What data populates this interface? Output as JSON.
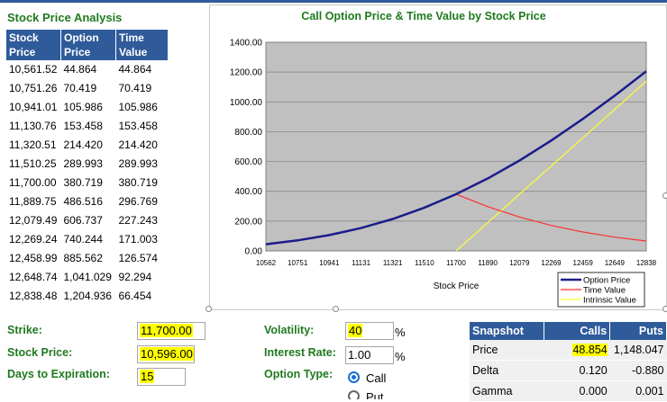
{
  "analysis": {
    "title": "Stock Price Analysis",
    "headers": [
      [
        "Stock",
        "Price"
      ],
      [
        "Option",
        "Price"
      ],
      [
        "Time",
        "Value"
      ]
    ],
    "rows": [
      [
        "10,561.52",
        "44.864",
        "44.864"
      ],
      [
        "10,751.26",
        "70.419",
        "70.419"
      ],
      [
        "10,941.01",
        "105.986",
        "105.986"
      ],
      [
        "11,130.76",
        "153.458",
        "153.458"
      ],
      [
        "11,320.51",
        "214.420",
        "214.420"
      ],
      [
        "11,510.25",
        "289.993",
        "289.993"
      ],
      [
        "11,700.00",
        "380.719",
        "380.719"
      ],
      [
        "11,889.75",
        "486.516",
        "296.769"
      ],
      [
        "12,079.49",
        "606.737",
        "227.243"
      ],
      [
        "12,269.24",
        "740.244",
        "171.003"
      ],
      [
        "12,458.99",
        "885.562",
        "126.574"
      ],
      [
        "12,648.74",
        "1,041.029",
        "92.294"
      ],
      [
        "12,838.48",
        "1,204.936",
        "66.454"
      ]
    ]
  },
  "chart_data": {
    "type": "line",
    "title": "Call Option Price & Time Value by Stock Price",
    "xlabel": "Stock Price",
    "ylabel": "",
    "x": [
      10561.52,
      10751.26,
      10941.01,
      11130.76,
      11320.51,
      11510.25,
      11700.0,
      11889.75,
      12079.49,
      12269.24,
      12458.99,
      12648.74,
      12838.48
    ],
    "categories": [
      "10562",
      "10751",
      "10941",
      "11131",
      "11321",
      "11510",
      "11700",
      "11890",
      "12079",
      "12269",
      "12459",
      "12649",
      "12838"
    ],
    "ylim": [
      0,
      1400
    ],
    "yticks": [
      "0.00",
      "200.00",
      "400.00",
      "600.00",
      "800.00",
      "1000.00",
      "1200.00",
      "1400.00"
    ],
    "ytick_values": [
      0,
      200,
      400,
      600,
      800,
      1000,
      1200,
      1400
    ],
    "grid": true,
    "legend_position": "bottom-right",
    "series": [
      {
        "name": "Option Price",
        "color": "#1c1c8c",
        "values": [
          44.864,
          70.419,
          105.986,
          153.458,
          214.42,
          289.993,
          380.719,
          486.516,
          606.737,
          740.244,
          885.562,
          1041.029,
          1204.936
        ]
      },
      {
        "name": "Time Value",
        "color": "#ff3030",
        "values": [
          44.864,
          70.419,
          105.986,
          153.458,
          214.42,
          289.993,
          380.719,
          296.769,
          227.243,
          171.003,
          126.574,
          92.294,
          66.454
        ]
      },
      {
        "name": "Intrinsic Value",
        "color": "#ffff33",
        "values": [
          0,
          0,
          0,
          0,
          0,
          0,
          0,
          189.75,
          379.49,
          569.24,
          758.99,
          948.74,
          1138.48
        ]
      }
    ]
  },
  "inputs": {
    "strike_label": "Strike:",
    "strike_value": "11,700.00",
    "stock_price_label": "Stock Price:",
    "stock_price_value": "10,596.00",
    "days_label": "Days to Expiration:",
    "days_value": "15",
    "volatility_label": "Volatility:",
    "volatility_value": "40",
    "volatility_unit": "%",
    "rate_label": "Interest Rate:",
    "rate_value": "1.00",
    "rate_unit": "%",
    "option_type_label": "Option Type:",
    "option_call": "Call",
    "option_put": "Put"
  },
  "snapshot": {
    "headers": [
      "Snapshot",
      "Calls",
      "Puts"
    ],
    "rows": [
      [
        "Price",
        "48.854",
        "1,148.047"
      ],
      [
        "Delta",
        "0.120",
        "-0.880"
      ],
      [
        "Gamma",
        "0.000",
        "0.001"
      ]
    ]
  },
  "colors": {
    "header_blue": "#2f5b9a",
    "title_green": "#1f7a1f",
    "plot_bg": "#c0c0c0",
    "highlight": "#ffff00"
  }
}
